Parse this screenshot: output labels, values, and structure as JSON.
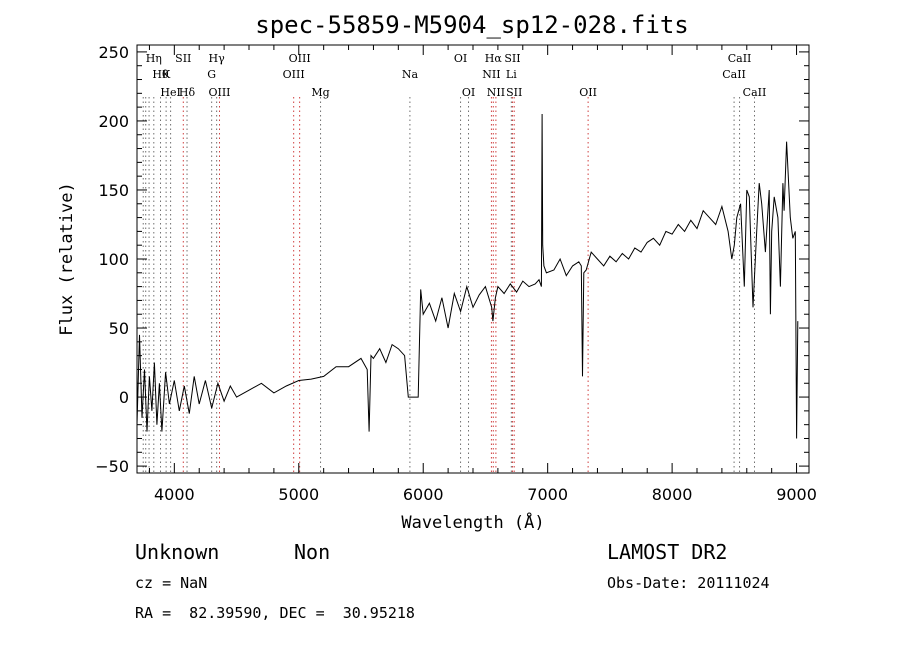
{
  "chart_data": {
    "type": "line",
    "title": "spec-55859-M5904_sp12-028.fits",
    "xlabel": "Wavelength (Å)",
    "ylabel": "Flux (relative)",
    "xlim": [
      3700,
      9100
    ],
    "ylim": [
      -55,
      255
    ],
    "x_ticks": [
      4000,
      5000,
      6000,
      7000,
      8000,
      9000
    ],
    "y_ticks": [
      -50,
      0,
      50,
      100,
      150,
      200,
      250
    ],
    "grid": false,
    "series": [
      {
        "x": [
          3700,
          3720,
          3740,
          3760,
          3780,
          3800,
          3820,
          3840,
          3860,
          3880,
          3900,
          3930,
          3960,
          4000,
          4040,
          4080,
          4120,
          4160,
          4200,
          4250,
          4300,
          4350,
          4400,
          4450,
          4500,
          4600,
          4700,
          4800,
          4900,
          5000,
          5100,
          5200,
          5300,
          5400,
          5500,
          5550,
          5565,
          5580,
          5600,
          5650,
          5700,
          5750,
          5800,
          5850,
          5880,
          5890,
          5900,
          5920,
          5940,
          5960,
          5980,
          6000,
          6050,
          6100,
          6150,
          6200,
          6250,
          6300,
          6350,
          6400,
          6450,
          6500,
          6550,
          6560,
          6580,
          6600,
          6650,
          6700,
          6750,
          6800,
          6850,
          6900,
          6930,
          6950,
          6955,
          6960,
          6970,
          6990,
          7050,
          7100,
          7150,
          7200,
          7250,
          7270,
          7280,
          7290,
          7310,
          7350,
          7400,
          7450,
          7500,
          7550,
          7600,
          7650,
          7700,
          7750,
          7800,
          7850,
          7900,
          7950,
          8000,
          8050,
          8100,
          8150,
          8200,
          8250,
          8300,
          8350,
          8400,
          8450,
          8480,
          8500,
          8520,
          8550,
          8580,
          8600,
          8620,
          8650,
          8680,
          8700,
          8720,
          8750,
          8780,
          8790,
          8800,
          8820,
          8850,
          8870,
          8890,
          8900,
          8920,
          8950,
          8970,
          8990,
          9000,
          9010
        ],
        "y": [
          -20,
          45,
          -15,
          20,
          -25,
          15,
          -10,
          25,
          -20,
          10,
          -25,
          18,
          -5,
          12,
          -10,
          8,
          -12,
          15,
          -5,
          12,
          -8,
          10,
          -3,
          8,
          0,
          5,
          10,
          3,
          8,
          12,
          13,
          15,
          22,
          22,
          28,
          20,
          -25,
          30,
          28,
          35,
          25,
          38,
          35,
          30,
          0,
          0,
          0,
          0,
          0,
          0,
          78,
          60,
          68,
          55,
          72,
          50,
          75,
          62,
          80,
          65,
          74,
          80,
          65,
          55,
          72,
          80,
          75,
          82,
          76,
          84,
          80,
          82,
          85,
          80,
          205,
          110,
          95,
          90,
          92,
          100,
          88,
          95,
          98,
          95,
          15,
          90,
          92,
          105,
          100,
          95,
          102,
          98,
          104,
          100,
          108,
          105,
          112,
          115,
          110,
          120,
          118,
          125,
          120,
          128,
          122,
          135,
          130,
          125,
          138,
          120,
          100,
          110,
          130,
          140,
          80,
          150,
          145,
          65,
          120,
          155,
          140,
          105,
          150,
          60,
          120,
          145,
          130,
          80,
          155,
          135,
          185,
          130,
          115,
          120,
          -30,
          55
        ]
      }
    ],
    "line_markers": [
      {
        "w": 3750,
        "label": "",
        "row": 0
      },
      {
        "w": 3770,
        "label": "",
        "row": 0
      },
      {
        "w": 3797,
        "label": "",
        "row": 0
      },
      {
        "w": 3835,
        "label": "Hη",
        "row": 0
      },
      {
        "w": 3889,
        "label": "Hθ",
        "row": 1
      },
      {
        "w": 3934,
        "label": "K",
        "row": 1
      },
      {
        "w": 3970,
        "label": "HeI",
        "row": 2
      },
      {
        "w": 4072,
        "label": "SII",
        "row": 0
      },
      {
        "w": 4102,
        "label": "Hδ",
        "row": 2
      },
      {
        "w": 4300,
        "label": "G",
        "row": 1
      },
      {
        "w": 4340,
        "label": "Hγ",
        "row": 0
      },
      {
        "w": 4363,
        "label": "OIII",
        "row": 2
      },
      {
        "w": 4959,
        "label": "OIII",
        "row": 1
      },
      {
        "w": 5007,
        "label": "OIII",
        "row": 0
      },
      {
        "w": 5175,
        "label": "Mg",
        "row": 2
      },
      {
        "w": 5893,
        "label": "Na",
        "row": 1
      },
      {
        "w": 6300,
        "label": "OI",
        "row": 0
      },
      {
        "w": 6364,
        "label": "OI",
        "row": 2
      },
      {
        "w": 6548,
        "label": "NII",
        "row": 1
      },
      {
        "w": 6563,
        "label": "Hα",
        "row": 0
      },
      {
        "w": 6584,
        "label": "NII",
        "row": 2
      },
      {
        "w": 6708,
        "label": "Li",
        "row": 1
      },
      {
        "w": 6717,
        "label": "SII",
        "row": 0
      },
      {
        "w": 6731,
        "label": "SII",
        "row": 2
      },
      {
        "w": 7325,
        "label": "OII",
        "row": 2
      },
      {
        "w": 8498,
        "label": "CaII",
        "row": 1
      },
      {
        "w": 8542,
        "label": "CaII",
        "row": 0
      },
      {
        "w": 8662,
        "label": "CaII",
        "row": 2
      }
    ]
  },
  "info": {
    "classification": "Unknown",
    "subclass": "Non",
    "survey": "LAMOST DR2",
    "cz": "cz = NaN",
    "obs_date": "Obs-Date: 20111024",
    "coords": "RA =  82.39590, DEC =  30.95218"
  },
  "colors": {
    "emission_marker": "#d04040",
    "absorption_marker": "#707070",
    "trace": "#000000"
  }
}
